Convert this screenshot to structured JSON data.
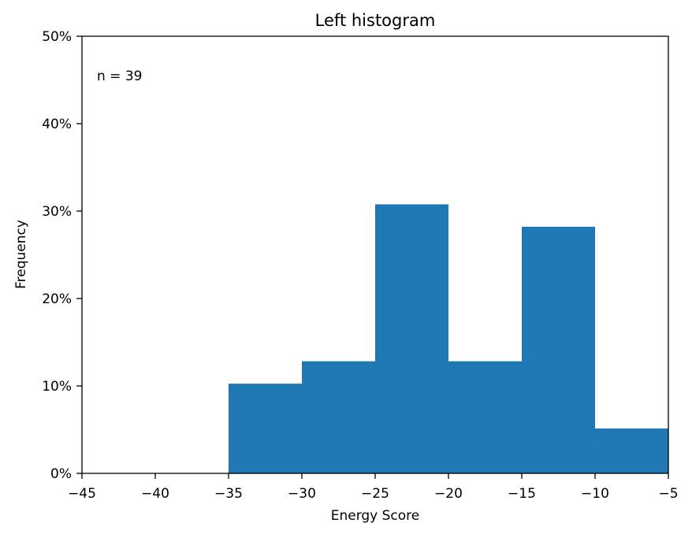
{
  "chart_data": {
    "type": "bar",
    "title": "Left histogram",
    "xlabel": "Energy Score",
    "ylabel": "Frequency",
    "annotation": "n = 39",
    "xlim": [
      -45,
      -5
    ],
    "ylim": [
      0,
      0.5
    ],
    "bins": [
      {
        "x0": -35,
        "x1": -30,
        "value": 0.1026
      },
      {
        "x0": -30,
        "x1": -25,
        "value": 0.1282
      },
      {
        "x0": -25,
        "x1": -20,
        "value": 0.3077
      },
      {
        "x0": -20,
        "x1": -15,
        "value": 0.1282
      },
      {
        "x0": -15,
        "x1": -10,
        "value": 0.2821
      },
      {
        "x0": -10,
        "x1": -5,
        "value": 0.0513
      }
    ],
    "xticks": [
      -45,
      -40,
      -35,
      -30,
      -25,
      -20,
      -15,
      -10,
      -5
    ],
    "xtick_labels": [
      "−45",
      "−40",
      "−35",
      "−30",
      "−25",
      "−20",
      "−15",
      "−10",
      "−5"
    ],
    "yticks": [
      0,
      0.1,
      0.2,
      0.3,
      0.4,
      0.5
    ],
    "ytick_labels": [
      "0%",
      "10%",
      "20%",
      "30%",
      "40%",
      "50%"
    ],
    "bar_color": "#1f77b4",
    "grid": false
  }
}
